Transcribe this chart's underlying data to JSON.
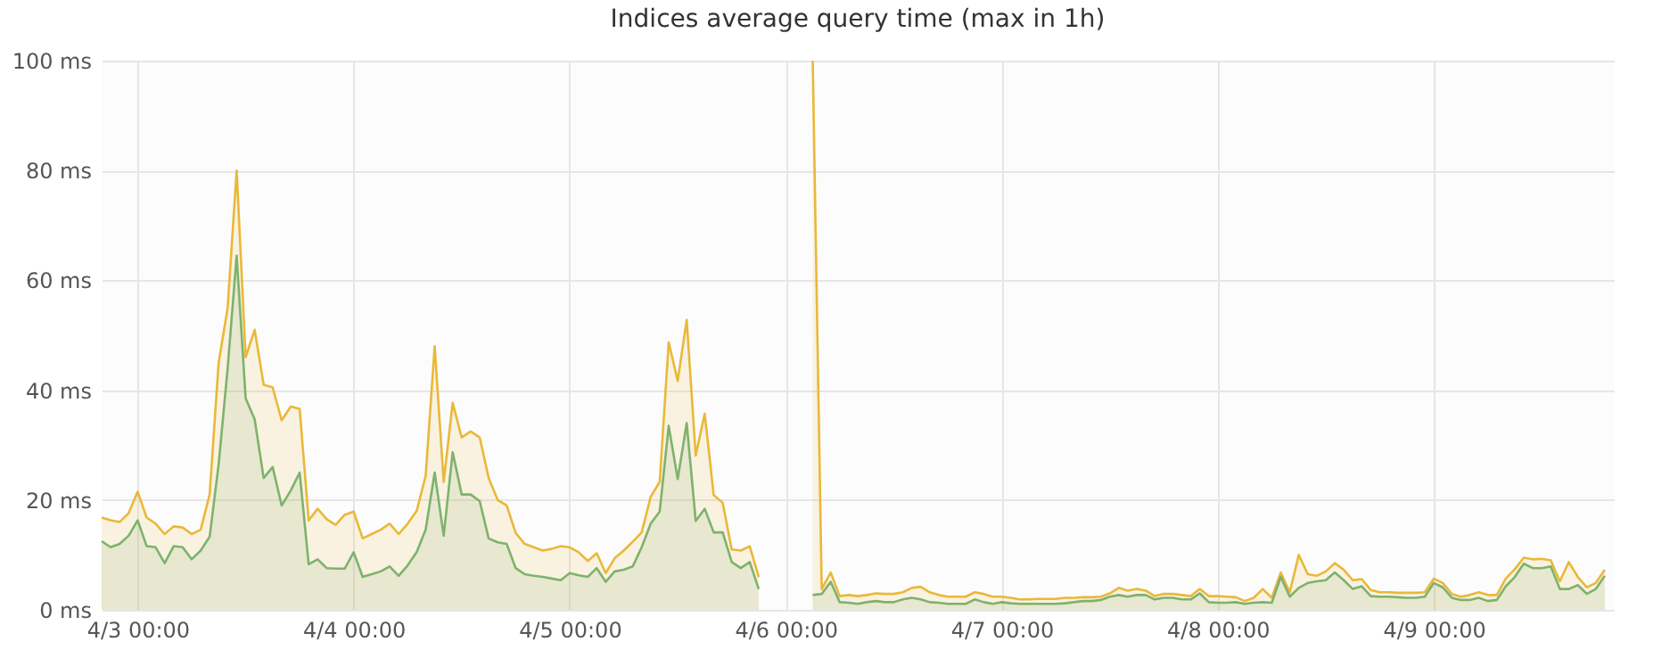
{
  "chart_data": {
    "type": "area",
    "title": "Indices average query time (max in 1h)",
    "x": [
      "--04-02T20:00",
      "--04-02T21:00",
      "--04-02T22:00",
      "--04-02T23:00",
      "--04-03T00:00",
      "--04-03T01:00",
      "--04-03T02:00",
      "--04-03T03:00",
      "--04-03T04:00",
      "--04-03T05:00",
      "--04-03T06:00",
      "--04-03T07:00",
      "--04-03T08:00",
      "--04-03T09:00",
      "--04-03T10:00",
      "--04-03T11:00",
      "--04-03T12:00",
      "--04-03T13:00",
      "--04-03T14:00",
      "--04-03T15:00",
      "--04-03T16:00",
      "--04-03T17:00",
      "--04-03T18:00",
      "--04-03T19:00",
      "--04-03T20:00",
      "--04-03T21:00",
      "--04-03T22:00",
      "--04-03T23:00",
      "--04-04T00:00",
      "--04-04T01:00",
      "--04-04T02:00",
      "--04-04T03:00",
      "--04-04T04:00",
      "--04-04T05:00",
      "--04-04T06:00",
      "--04-04T07:00",
      "--04-04T08:00",
      "--04-04T09:00",
      "--04-04T10:00",
      "--04-04T11:00",
      "--04-04T12:00",
      "--04-04T13:00",
      "--04-04T14:00",
      "--04-04T15:00",
      "--04-04T16:00",
      "--04-04T17:00",
      "--04-04T18:00",
      "--04-04T19:00",
      "--04-04T20:00",
      "--04-04T21:00",
      "--04-04T22:00",
      "--04-04T23:00",
      "--04-05T00:00",
      "--04-05T01:00",
      "--04-05T02:00",
      "--04-05T03:00",
      "--04-05T04:00",
      "--04-05T05:00",
      "--04-05T06:00",
      "--04-05T07:00",
      "--04-05T08:00",
      "--04-05T09:00",
      "--04-05T10:00",
      "--04-05T11:00",
      "--04-05T12:00",
      "--04-05T13:00",
      "--04-05T14:00",
      "--04-05T15:00",
      "--04-05T16:00",
      "--04-05T17:00",
      "--04-05T18:00",
      "--04-05T19:00",
      "--04-05T20:00",
      "--04-05T21:00",
      "--04-05T22:00",
      "--04-05T23:00",
      "--04-06T00:00",
      "--04-06T01:00",
      "--04-06T02:00",
      "--04-06T03:00",
      "--04-06T04:00",
      "--04-06T05:00",
      "--04-06T06:00",
      "--04-06T07:00",
      "--04-06T08:00",
      "--04-06T09:00",
      "--04-06T10:00",
      "--04-06T11:00",
      "--04-06T12:00",
      "--04-06T13:00",
      "--04-06T14:00",
      "--04-06T15:00",
      "--04-06T16:00",
      "--04-06T17:00",
      "--04-06T18:00",
      "--04-06T19:00",
      "--04-06T20:00",
      "--04-06T21:00",
      "--04-06T22:00",
      "--04-06T23:00",
      "--04-07T00:00",
      "--04-07T01:00",
      "--04-07T02:00",
      "--04-07T03:00",
      "--04-07T04:00",
      "--04-07T05:00",
      "--04-07T06:00",
      "--04-07T07:00",
      "--04-07T08:00",
      "--04-07T09:00",
      "--04-07T10:00",
      "--04-07T11:00",
      "--04-07T12:00",
      "--04-07T13:00",
      "--04-07T14:00",
      "--04-07T15:00",
      "--04-07T16:00",
      "--04-07T17:00",
      "--04-07T18:00",
      "--04-07T19:00",
      "--04-07T20:00",
      "--04-07T21:00",
      "--04-07T22:00",
      "--04-07T23:00",
      "--04-08T00:00",
      "--04-08T01:00",
      "--04-08T02:00",
      "--04-08T03:00",
      "--04-08T04:00",
      "--04-08T05:00",
      "--04-08T06:00",
      "--04-08T07:00",
      "--04-08T08:00",
      "--04-08T09:00",
      "--04-08T10:00",
      "--04-08T11:00",
      "--04-08T12:00",
      "--04-08T13:00",
      "--04-08T14:00",
      "--04-08T15:00",
      "--04-08T16:00",
      "--04-08T17:00",
      "--04-08T18:00",
      "--04-08T19:00",
      "--04-08T20:00",
      "--04-08T21:00",
      "--04-08T22:00",
      "--04-08T23:00",
      "--04-09T00:00",
      "--04-09T01:00",
      "--04-09T02:00",
      "--04-09T03:00",
      "--04-09T04:00",
      "--04-09T05:00",
      "--04-09T06:00",
      "--04-09T07:00",
      "--04-09T08:00",
      "--04-09T09:00",
      "--04-09T10:00",
      "--04-09T11:00",
      "--04-09T12:00",
      "--04-09T13:00",
      "--04-09T14:00",
      "--04-09T15:00",
      "--04-09T16:00",
      "--04-09T17:00",
      "--04-09T18:00",
      "--04-09T19:00"
    ],
    "series": [
      {
        "color": "#eab839",
        "values": [
          16.8,
          16.3,
          16,
          17.6,
          21.5,
          16.8,
          15.7,
          13.8,
          15.2,
          15,
          13.8,
          14.6,
          21,
          45,
          55,
          80,
          46,
          51,
          41,
          40.5,
          34.5,
          37,
          36.6,
          16.3,
          18.4,
          16.5,
          15.5,
          17.3,
          17.9,
          13,
          13.8,
          14.6,
          15.7,
          13.8,
          15.7,
          18,
          24.4,
          48,
          23.3,
          37.7,
          31.4,
          32.5,
          31.4,
          24,
          20,
          19,
          14,
          12,
          11.4,
          10.8,
          11.1,
          11.6,
          11.4,
          10.5,
          8.9,
          10.3,
          6.7,
          9.4,
          10.8,
          12.4,
          14.1,
          20.6,
          23.3,
          48.7,
          41.7,
          52.8,
          28.1,
          35.7,
          20.9,
          19.5,
          11,
          10.8,
          11.6,
          6,
          null,
          null,
          null,
          null,
          null,
          100,
          3.8,
          6.8,
          2.5,
          2.7,
          2.5,
          2.7,
          3,
          2.9,
          2.9,
          3.2,
          4,
          4.2,
          3.2,
          2.7,
          2.4,
          2.4,
          2.4,
          3.2,
          2.9,
          2.4,
          2.4,
          2.2,
          1.9,
          1.9,
          2,
          2,
          2,
          2.2,
          2.2,
          2.3,
          2.3,
          2.4,
          3,
          4,
          3.5,
          3.8,
          3.5,
          2.5,
          2.9,
          2.9,
          2.7,
          2.5,
          3.8,
          2.5,
          2.5,
          2.4,
          2.3,
          1.6,
          2.2,
          3.8,
          2.2,
          6.8,
          3.2,
          10,
          6.5,
          6.2,
          7,
          8.5,
          7.3,
          5.4,
          5.6,
          3.6,
          3.2,
          3.2,
          3.1,
          3.1,
          3.1,
          3.2,
          5.7,
          4.9,
          2.9,
          2.4,
          2.7,
          3.2,
          2.7,
          2.7,
          5.7,
          7.4,
          9.5,
          9.2,
          9.3,
          9,
          5.2,
          8.7,
          6,
          4.1,
          4.9,
          7.3
        ]
      },
      {
        "color": "#7eb26d",
        "values": [
          12.5,
          11.4,
          12,
          13.5,
          16.3,
          11.6,
          11.4,
          8.5,
          11.6,
          11.4,
          9.2,
          10.8,
          13.3,
          26.5,
          44,
          64.5,
          38.5,
          34.7,
          24,
          26,
          19,
          21.7,
          25,
          8.3,
          9.2,
          7.6,
          7.5,
          7.5,
          10.5,
          6,
          6.5,
          7,
          7.9,
          6.2,
          8.1,
          10.5,
          14.6,
          25,
          13.5,
          28.7,
          21,
          21,
          19.8,
          13,
          12.3,
          12,
          7.6,
          6.5,
          6.2,
          6,
          5.7,
          5.4,
          6.7,
          6.3,
          6,
          7.6,
          5.1,
          7,
          7.3,
          7.9,
          11.4,
          15.7,
          17.9,
          33.5,
          23.8,
          34,
          16.2,
          18.4,
          14.1,
          14.1,
          8.7,
          7.6,
          8.7,
          3.8,
          null,
          null,
          null,
          null,
          null,
          2.7,
          2.9,
          5.1,
          1.4,
          1.3,
          1.1,
          1.4,
          1.6,
          1.4,
          1.4,
          1.9,
          2.2,
          1.9,
          1.4,
          1.3,
          1.1,
          1.1,
          1.1,
          1.9,
          1.4,
          1.1,
          1.4,
          1.2,
          1.1,
          1.1,
          1.1,
          1.1,
          1.1,
          1.2,
          1.4,
          1.6,
          1.6,
          1.8,
          2.4,
          2.7,
          2.4,
          2.7,
          2.7,
          1.9,
          2.2,
          2.2,
          1.9,
          1.9,
          3,
          1.4,
          1.3,
          1.3,
          1.4,
          1.1,
          1.3,
          1.4,
          1.3,
          6,
          2.4,
          4,
          4.9,
          5.2,
          5.4,
          6.8,
          5.4,
          3.8,
          4.3,
          2.5,
          2.4,
          2.4,
          2.3,
          2.2,
          2.2,
          2.4,
          4.9,
          4.1,
          2.2,
          1.8,
          1.8,
          2.2,
          1.6,
          1.8,
          4.3,
          6,
          8.4,
          7.6,
          7.6,
          7.9,
          3.8,
          3.8,
          4.5,
          2.9,
          3.8,
          6.2
        ]
      }
    ],
    "xlim": [
      "--04-02T20:00",
      "--04-09T20:00"
    ],
    "xticks": [
      {
        "value": "--04-03T00:00",
        "label": "4/3 00:00"
      },
      {
        "value": "--04-04T00:00",
        "label": "4/4 00:00"
      },
      {
        "value": "--04-05T00:00",
        "label": "4/5 00:00"
      },
      {
        "value": "--04-06T00:00",
        "label": "4/6 00:00"
      },
      {
        "value": "--04-07T00:00",
        "label": "4/7 00:00"
      },
      {
        "value": "--04-08T00:00",
        "label": "4/8 00:00"
      },
      {
        "value": "--04-09T00:00",
        "label": "4/9 00:00"
      }
    ],
    "ylim": [
      0,
      100
    ],
    "yticks": [
      {
        "value": 0,
        "label": "0 ms"
      },
      {
        "value": 20,
        "label": "20 ms"
      },
      {
        "value": 40,
        "label": "40 ms"
      },
      {
        "value": 60,
        "label": "60 ms"
      },
      {
        "value": 80,
        "label": "80 ms"
      },
      {
        "value": 100,
        "label": "100 ms"
      }
    ],
    "grid": true
  }
}
